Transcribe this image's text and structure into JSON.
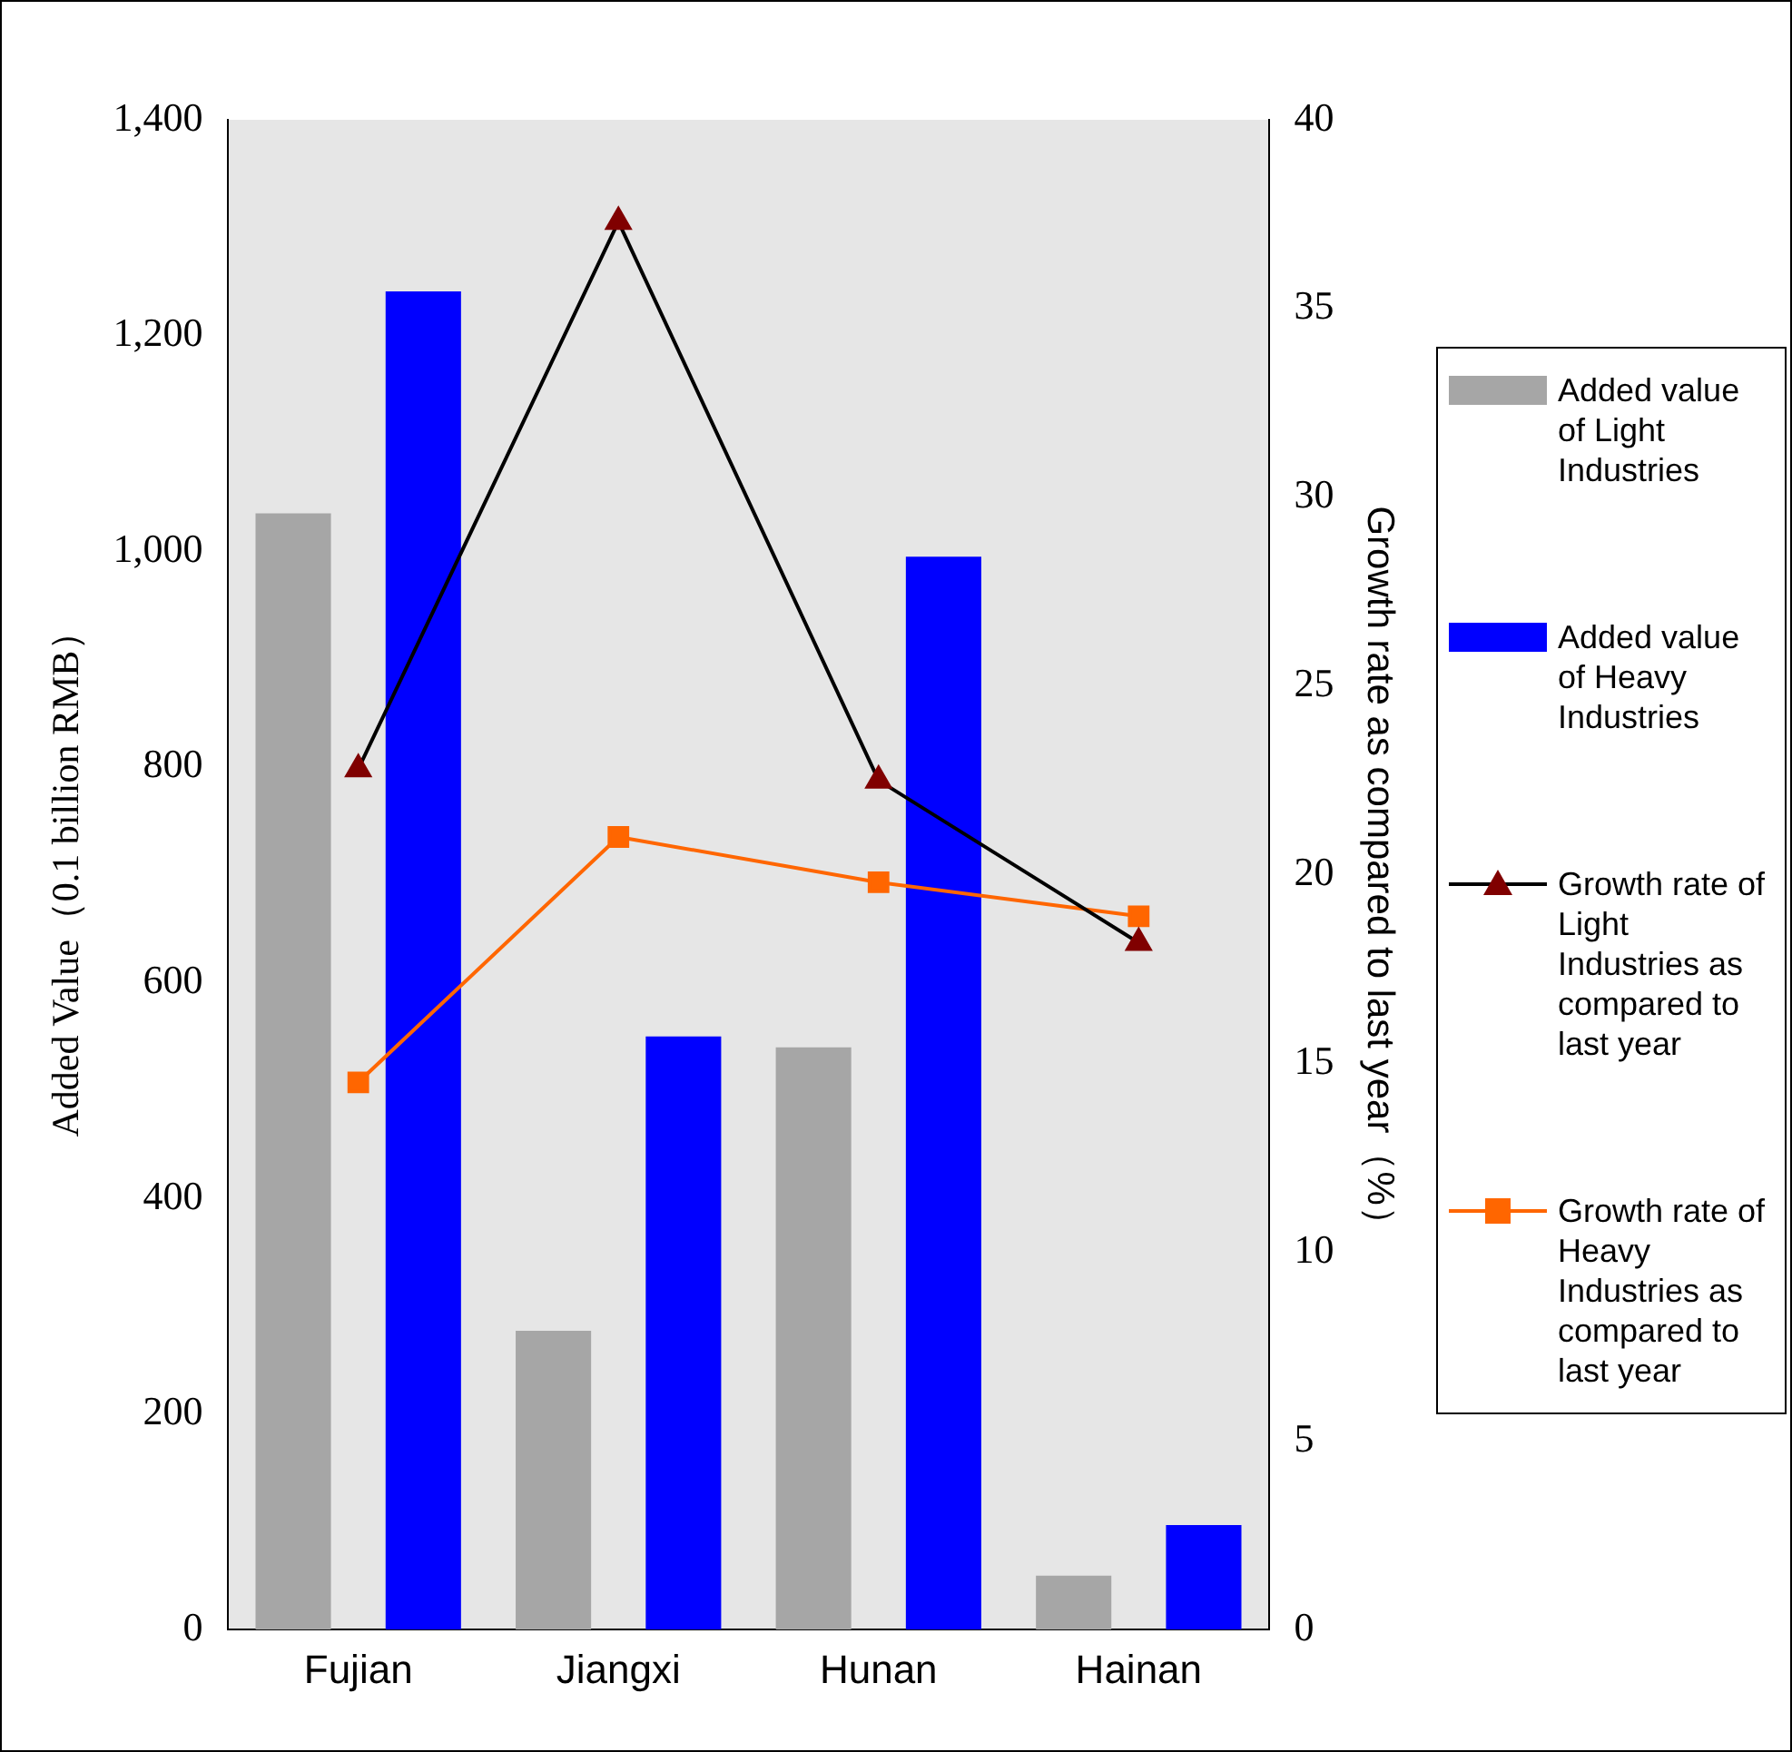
{
  "chart_data": {
    "type": "bar",
    "categories": [
      "Fujian",
      "Jiangxi",
      "Hunan",
      "Hainan"
    ],
    "ylabel": "Added Value（0.1 billion RMB）",
    "y2label": "Growth rate as compared to last year（%）",
    "ylim": [
      0,
      1400
    ],
    "yticks": [
      0,
      200,
      400,
      600,
      800,
      {
        "value": 1000,
        "label": "1,000"
      },
      {
        "value": 1200,
        "label": "1,200"
      },
      {
        "value": 1400,
        "label": "1,400"
      }
    ],
    "y2lim": [
      0,
      40
    ],
    "y2ticks": [
      0,
      5,
      10,
      15,
      20,
      25,
      30,
      35,
      40
    ],
    "legend": "right",
    "grid": false,
    "series": [
      {
        "name": "Added value of Light Industries",
        "color": "#a6a6a6",
        "values": [
          1035,
          277,
          540,
          50
        ]
      },
      {
        "name": "Added value of Heavy Industries",
        "color": "#0000ff",
        "values": [
          1241,
          550,
          995,
          97
        ]
      },
      {
        "name": "Growth rate of Light Industries as compared to last year",
        "type": "line",
        "axis": "y2",
        "color": "#000000",
        "marker": "triangle",
        "values": [
          22.8,
          37.3,
          22.5,
          18.2
        ]
      },
      {
        "name": "Growth rate of Heavy Industries as compared to last year",
        "type": "line",
        "axis": "y2",
        "color": "#ff6600",
        "marker": "square",
        "values": [
          14.5,
          21.0,
          19.8,
          18.9
        ]
      }
    ]
  }
}
